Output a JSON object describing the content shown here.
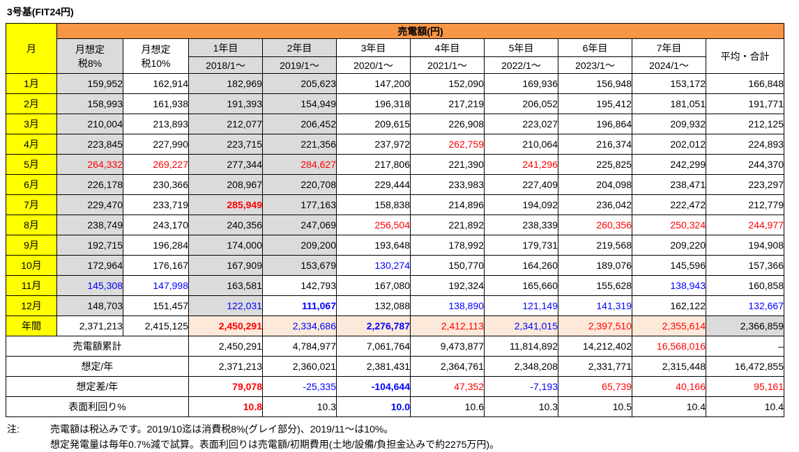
{
  "title": "3号基(FIT24円)",
  "banner": "売電額(円)",
  "colors": {
    "red": "#FF0000",
    "blue": "#0000FF",
    "gray": "#DBDBDB",
    "peach": "#FDE9D9",
    "yellow": "#FFFF00",
    "orange": "#F79646"
  },
  "columns": {
    "month": "月",
    "est8_line1": "月想定",
    "est8_line2": "税8%",
    "est10_line1": "月想定",
    "est10_line2": "税10%",
    "years": [
      {
        "label": "1年目",
        "date": "2018/1〜"
      },
      {
        "label": "2年目",
        "date": "2019/1〜"
      },
      {
        "label": "3年目",
        "date": "2020/1〜"
      },
      {
        "label": "4年目",
        "date": "2021/1〜"
      },
      {
        "label": "5年目",
        "date": "2022/1〜"
      },
      {
        "label": "6年目",
        "date": "2023/1〜"
      },
      {
        "label": "7年目",
        "date": "2024/1〜"
      }
    ],
    "avg": "平均・合計"
  },
  "months": [
    {
      "label": "1月",
      "cells": [
        {
          "v": "159,952",
          "bg": "gray"
        },
        "162,914",
        {
          "v": "182,969",
          "bg": "gray"
        },
        {
          "v": "205,623",
          "bg": "gray"
        },
        "147,200",
        "152,090",
        "169,936",
        "156,948",
        "153,172",
        "166,848"
      ]
    },
    {
      "label": "2月",
      "cells": [
        {
          "v": "158,993",
          "bg": "gray"
        },
        "161,938",
        {
          "v": "191,393",
          "bg": "gray"
        },
        {
          "v": "154,949",
          "bg": "gray"
        },
        "196,318",
        "217,219",
        "206,052",
        "195,412",
        "181,051",
        "191,771"
      ]
    },
    {
      "label": "3月",
      "cells": [
        {
          "v": "210,004",
          "bg": "gray"
        },
        "213,893",
        {
          "v": "212,077",
          "bg": "gray"
        },
        {
          "v": "206,452",
          "bg": "gray"
        },
        "209,615",
        "226,908",
        "223,027",
        "196,864",
        "209,932",
        "212,125"
      ]
    },
    {
      "label": "4月",
      "cells": [
        {
          "v": "223,845",
          "bg": "gray"
        },
        "227,990",
        {
          "v": "223,715",
          "bg": "gray"
        },
        {
          "v": "221,356",
          "bg": "gray"
        },
        "237,972",
        {
          "v": "262,759",
          "c": "red"
        },
        "210,064",
        "216,374",
        "202,012",
        "224,893"
      ]
    },
    {
      "label": "5月",
      "cells": [
        {
          "v": "264,332",
          "c": "red",
          "bg": "gray"
        },
        {
          "v": "269,227",
          "c": "red"
        },
        {
          "v": "277,344",
          "bg": "gray"
        },
        {
          "v": "284,627",
          "c": "red",
          "bg": "gray"
        },
        "217,806",
        "221,390",
        {
          "v": "241,296",
          "c": "red"
        },
        "225,825",
        "242,299",
        "244,370"
      ]
    },
    {
      "label": "6月",
      "cells": [
        {
          "v": "226,178",
          "bg": "gray"
        },
        "230,366",
        {
          "v": "208,967",
          "bg": "gray"
        },
        {
          "v": "220,708",
          "bg": "gray"
        },
        "229,444",
        "233,983",
        "227,409",
        "204,098",
        "238,471",
        "223,297"
      ]
    },
    {
      "label": "7月",
      "cells": [
        {
          "v": "229,470",
          "bg": "gray"
        },
        "233,719",
        {
          "v": "285,949",
          "c": "red",
          "b": 1,
          "bg": "gray"
        },
        {
          "v": "177,163",
          "bg": "gray"
        },
        "158,838",
        "214,896",
        "194,092",
        "236,042",
        "222,472",
        "212,779"
      ]
    },
    {
      "label": "8月",
      "cells": [
        {
          "v": "238,749",
          "bg": "gray"
        },
        "243,170",
        {
          "v": "240,356",
          "bg": "gray"
        },
        {
          "v": "247,069",
          "bg": "gray"
        },
        {
          "v": "256,504",
          "c": "red"
        },
        "221,892",
        "238,339",
        {
          "v": "260,356",
          "c": "red"
        },
        {
          "v": "250,324",
          "c": "red"
        },
        {
          "v": "244,977",
          "c": "red"
        }
      ]
    },
    {
      "label": "9月",
      "cells": [
        {
          "v": "192,715",
          "bg": "gray"
        },
        "196,284",
        {
          "v": "174,000",
          "bg": "gray"
        },
        {
          "v": "209,200",
          "bg": "gray"
        },
        "193,648",
        "178,992",
        "179,731",
        "219,568",
        "209,220",
        "194,908"
      ]
    },
    {
      "label": "10月",
      "cells": [
        {
          "v": "172,964",
          "bg": "gray"
        },
        "176,167",
        {
          "v": "167,909",
          "bg": "gray"
        },
        {
          "v": "153,679",
          "bg": "gray"
        },
        {
          "v": "130,274",
          "c": "blue"
        },
        "150,770",
        "164,260",
        "189,076",
        "145,596",
        "157,366"
      ]
    },
    {
      "label": "11月",
      "cells": [
        {
          "v": "145,308",
          "c": "blue",
          "bg": "gray"
        },
        {
          "v": "147,998",
          "c": "blue"
        },
        {
          "v": "163,581",
          "bg": "gray"
        },
        "142,793",
        "167,080",
        "192,324",
        "165,660",
        "155,628",
        {
          "v": "138,943",
          "c": "blue"
        },
        "160,858"
      ]
    },
    {
      "label": "12月",
      "cells": [
        {
          "v": "148,703",
          "bg": "gray"
        },
        "151,457",
        {
          "v": "122,031",
          "c": "blue",
          "bg": "gray"
        },
        {
          "v": "111,067",
          "c": "blue",
          "b": 1
        },
        "132,088",
        {
          "v": "138,890",
          "c": "blue"
        },
        {
          "v": "121,149",
          "c": "blue"
        },
        {
          "v": "141,319",
          "c": "blue"
        },
        "162,122",
        {
          "v": "132,667",
          "c": "blue"
        }
      ]
    }
  ],
  "annual": {
    "label": "年間",
    "cells": [
      "2,371,213",
      "2,415,125",
      {
        "v": "2,450,291",
        "c": "red",
        "b": 1,
        "bg": "peach"
      },
      {
        "v": "2,334,686",
        "c": "blue",
        "bg": "peach"
      },
      {
        "v": "2,276,787",
        "c": "blue",
        "b": 1,
        "bg": "peach"
      },
      {
        "v": "2,412,113",
        "c": "red",
        "bg": "peach"
      },
      {
        "v": "2,341,015",
        "c": "blue",
        "bg": "peach"
      },
      {
        "v": "2,397,510",
        "c": "red",
        "bg": "peach"
      },
      {
        "v": "2,355,614",
        "c": "red",
        "bg": "peach"
      },
      {
        "v": "2,366,859",
        "bg": "gray"
      }
    ]
  },
  "summary": [
    {
      "label": "売電額累計",
      "cells": [
        "2,450,291",
        "4,784,977",
        "7,061,764",
        "9,473,877",
        "11,814,892",
        "14,212,402",
        {
          "v": "16,568,016",
          "c": "red"
        },
        "–"
      ]
    },
    {
      "label": "想定/年",
      "cells": [
        "2,371,213",
        "2,360,021",
        "2,381,431",
        "2,364,761",
        "2,348,208",
        "2,331,771",
        "2,315,448",
        "16,472,855"
      ]
    },
    {
      "label": "想定差/年",
      "cells": [
        {
          "v": "79,078",
          "c": "red",
          "b": 1
        },
        {
          "v": "-25,335",
          "c": "blue"
        },
        {
          "v": "-104,644",
          "c": "blue",
          "b": 1
        },
        {
          "v": "47,352",
          "c": "red"
        },
        {
          "v": "-7,193",
          "c": "blue"
        },
        {
          "v": "65,739",
          "c": "red"
        },
        {
          "v": "40,166",
          "c": "red"
        },
        {
          "v": "95,161",
          "c": "red"
        }
      ]
    },
    {
      "label": "表面利回り%",
      "cells": [
        {
          "v": "10.8",
          "c": "red",
          "b": 1
        },
        "10.3",
        {
          "v": "10.0",
          "c": "blue",
          "b": 1
        },
        "10.6",
        "10.3",
        "10.5",
        "10.4",
        "10.4"
      ]
    }
  ],
  "notes": {
    "prefix": "注:",
    "line1": "売電額は税込みです。2019/10迄は消費税8%(グレイ部分)、2019/11〜は10%。",
    "line2": "想定発電量は毎年0.7%減で試算。表面利回りは売電額/初期費用(土地/設備/負担金込みで約2275万円)。"
  }
}
